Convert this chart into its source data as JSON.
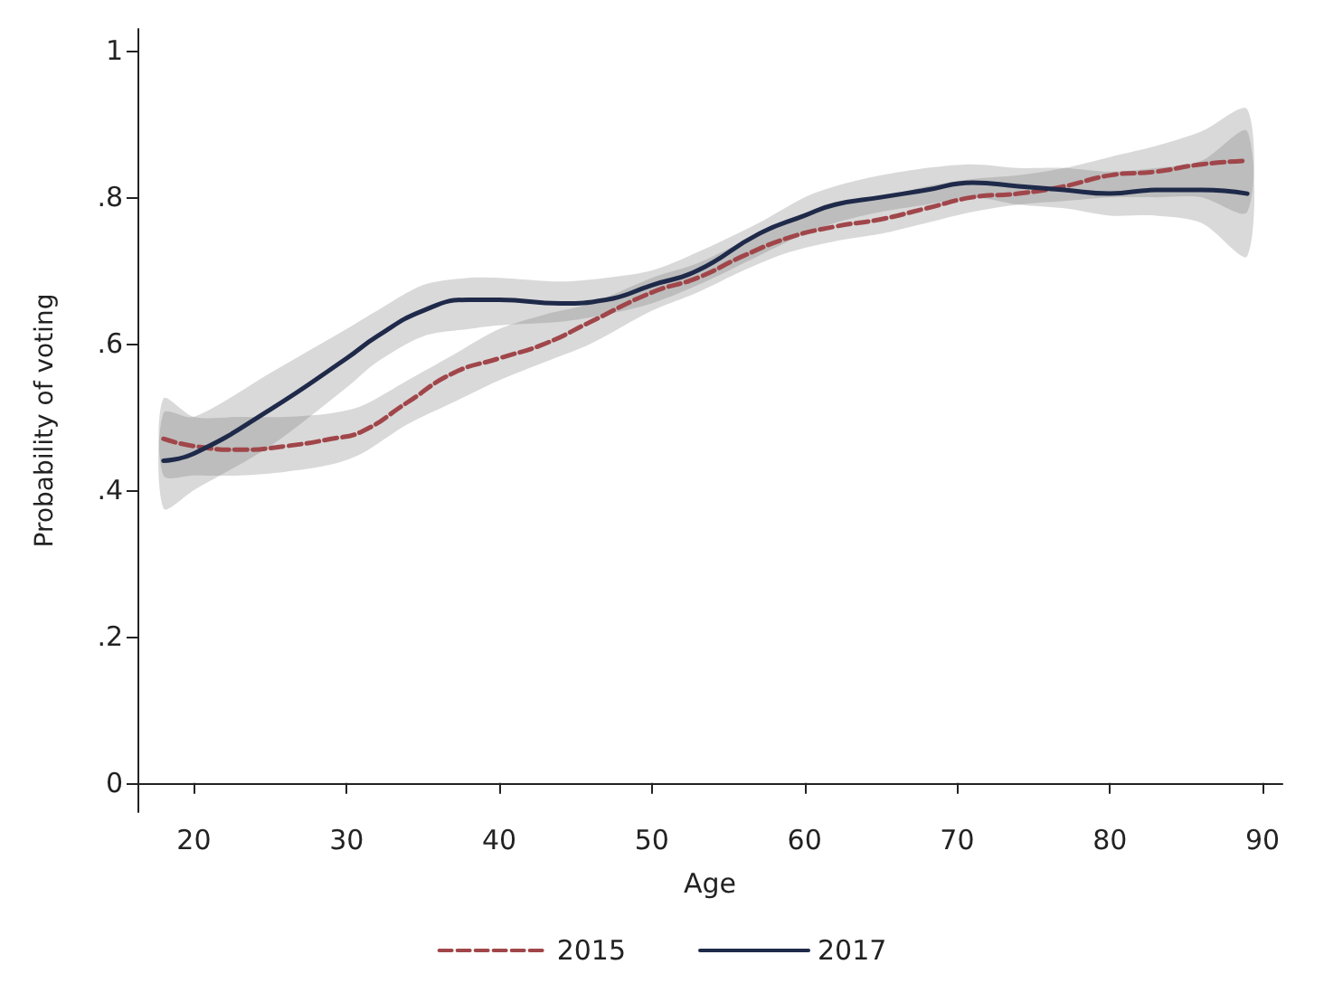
{
  "chart_data": {
    "type": "line",
    "xlabel": "Age",
    "ylabel": "Probability of voting",
    "xlim": [
      16.3,
      91.3
    ],
    "xticks": [
      20,
      30,
      40,
      50,
      60,
      70,
      80,
      90
    ],
    "ylim": [
      -0.04,
      1.03
    ],
    "yticks": [
      {
        "value": 0,
        "label": "0"
      },
      {
        "value": 0.2,
        "label": ".2"
      },
      {
        "value": 0.4,
        "label": ".4"
      },
      {
        "value": 0.6,
        "label": ".6"
      },
      {
        "value": 0.8,
        "label": ".8"
      },
      {
        "value": 1,
        "label": "1"
      }
    ],
    "grid": false,
    "legend": "bottom",
    "marker": "none",
    "series": [
      {
        "name": "2015",
        "color": "#a0464a",
        "line_style": "dashed",
        "x": [
          18,
          20,
          23,
          26,
          29,
          31,
          34,
          37,
          40,
          43,
          46,
          50,
          53,
          56,
          59,
          62,
          65,
          68,
          71,
          74,
          77,
          80,
          83,
          86,
          89
        ],
        "values": [
          0.47,
          0.46,
          0.455,
          0.46,
          0.47,
          0.48,
          0.52,
          0.56,
          0.58,
          0.6,
          0.63,
          0.67,
          0.69,
          0.72,
          0.745,
          0.76,
          0.77,
          0.785,
          0.8,
          0.805,
          0.815,
          0.83,
          0.835,
          0.845,
          0.85
        ],
        "lower": [
          0.42,
          0.42,
          0.42,
          0.425,
          0.435,
          0.45,
          0.49,
          0.52,
          0.55,
          0.575,
          0.6,
          0.645,
          0.67,
          0.7,
          0.725,
          0.74,
          0.75,
          0.765,
          0.78,
          0.79,
          0.795,
          0.8,
          0.8,
          0.8,
          0.78
        ],
        "upper": [
          0.525,
          0.5,
          0.5,
          0.5,
          0.505,
          0.515,
          0.55,
          0.585,
          0.62,
          0.64,
          0.655,
          0.69,
          0.71,
          0.74,
          0.77,
          0.79,
          0.8,
          0.815,
          0.825,
          0.83,
          0.84,
          0.855,
          0.87,
          0.89,
          0.92
        ]
      },
      {
        "name": "2017",
        "color": "#1f2a4a",
        "line_style": "solid",
        "x": [
          18,
          20,
          25,
          30,
          32,
          35,
          38,
          40,
          44,
          47,
          50,
          53,
          57,
          60,
          62,
          65,
          68,
          71,
          74,
          77,
          80,
          83,
          86,
          89
        ],
        "values": [
          0.44,
          0.45,
          0.51,
          0.58,
          0.61,
          0.645,
          0.66,
          0.66,
          0.655,
          0.66,
          0.68,
          0.7,
          0.75,
          0.775,
          0.79,
          0.8,
          0.81,
          0.82,
          0.815,
          0.81,
          0.805,
          0.81,
          0.81,
          0.805
        ],
        "lower": [
          0.375,
          0.4,
          0.46,
          0.54,
          0.575,
          0.61,
          0.62,
          0.625,
          0.63,
          0.64,
          0.655,
          0.68,
          0.72,
          0.75,
          0.765,
          0.78,
          0.79,
          0.8,
          0.79,
          0.785,
          0.775,
          0.775,
          0.765,
          0.72
        ],
        "upper": [
          0.505,
          0.5,
          0.56,
          0.62,
          0.645,
          0.68,
          0.69,
          0.69,
          0.685,
          0.69,
          0.7,
          0.725,
          0.765,
          0.8,
          0.815,
          0.83,
          0.84,
          0.845,
          0.84,
          0.84,
          0.835,
          0.84,
          0.85,
          0.89
        ]
      }
    ]
  }
}
